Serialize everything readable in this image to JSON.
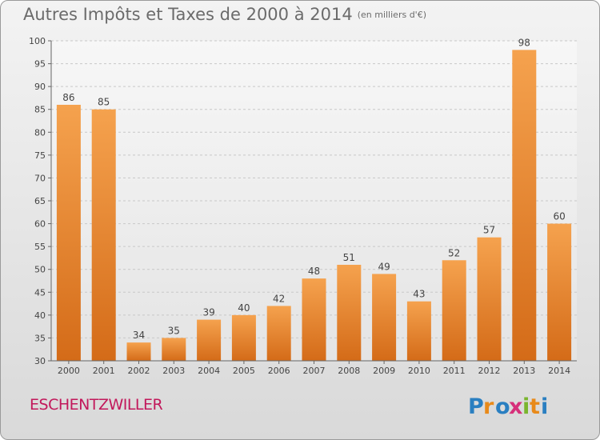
{
  "header": {
    "title": "Autres Impôts et Taxes de 2000 à 2014",
    "unit": "(en milliers d'€)"
  },
  "footer": {
    "town": "ESCHENTZWILLER",
    "logo_text": "Proxiti"
  },
  "colors": {
    "bar_light": "#f5a24e",
    "bar_dark": "#d46b18",
    "town": "#c2185b",
    "title": "#6b6b6b"
  },
  "chart_data": {
    "type": "bar",
    "categories": [
      "2000",
      "2001",
      "2002",
      "2003",
      "2004",
      "2005",
      "2006",
      "2007",
      "2008",
      "2009",
      "2010",
      "2011",
      "2012",
      "2013",
      "2014"
    ],
    "values": [
      86,
      85,
      34,
      35,
      39,
      40,
      42,
      48,
      51,
      49,
      43,
      52,
      57,
      98,
      60
    ],
    "ylim": [
      30,
      100
    ],
    "yticks": [
      30,
      35,
      40,
      45,
      50,
      55,
      60,
      65,
      70,
      75,
      80,
      85,
      90,
      95,
      100
    ],
    "grid": true,
    "data_labels": true
  }
}
